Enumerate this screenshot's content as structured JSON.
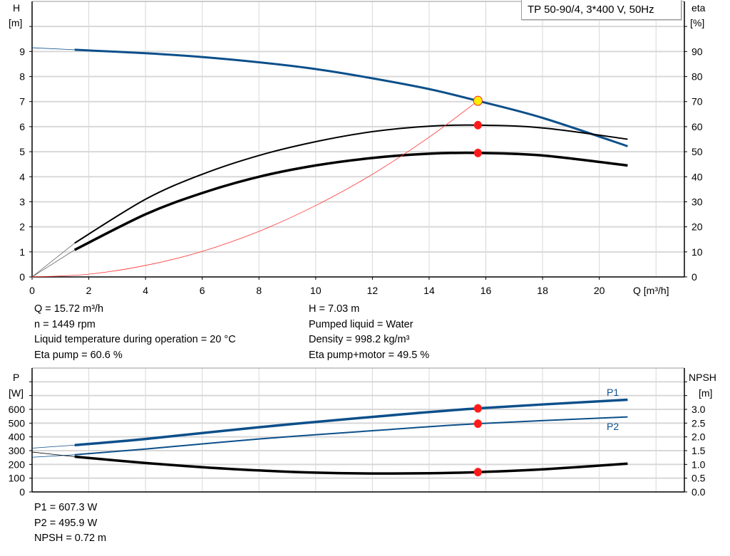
{
  "chart_data": [
    {
      "type": "line",
      "title": "TP 50-90/4, 3*400 V, 50Hz",
      "xlabel": "Q [m³/h]",
      "ylabel_left": [
        "H",
        "[m]"
      ],
      "ylabel_right": [
        "eta",
        "[%]"
      ],
      "xlim": [
        0,
        23
      ],
      "ylim_left": [
        0,
        11
      ],
      "ylim_right": [
        0,
        110
      ],
      "xticks": [
        0,
        2,
        4,
        6,
        8,
        10,
        12,
        14,
        16,
        18,
        20
      ],
      "yticks_left": [
        0,
        1,
        2,
        3,
        4,
        5,
        6,
        7,
        8,
        9
      ],
      "yticks_right": [
        0,
        10,
        20,
        30,
        40,
        50,
        60,
        70,
        80,
        90
      ],
      "grid": true,
      "series": [
        {
          "key": "H",
          "axis": "left",
          "color": "#0b4f8a",
          "x": [
            1.5,
            4,
            6,
            8,
            10,
            12,
            14,
            15.72,
            18,
            21
          ],
          "y": [
            9.07,
            8.93,
            8.78,
            8.57,
            8.3,
            7.93,
            7.5,
            7.03,
            6.35,
            5.22
          ],
          "extension_start": [
            0,
            9.15
          ]
        },
        {
          "key": "eta_pump",
          "axis": "right",
          "color": "#000000",
          "x": [
            1.5,
            4,
            6,
            8,
            10,
            12,
            14,
            15.72,
            18,
            21
          ],
          "y": [
            13.5,
            31,
            41,
            48.5,
            54,
            58,
            60.2,
            60.6,
            59.5,
            55
          ],
          "extension_start": [
            0,
            0
          ]
        },
        {
          "key": "eta_pump_motor",
          "axis": "right",
          "color": "#000000",
          "x": [
            1.5,
            4,
            6,
            8,
            10,
            12,
            14,
            15.72,
            18,
            21
          ],
          "y": [
            10.8,
            25,
            33.5,
            40,
            44.5,
            47.5,
            49.2,
            49.5,
            48.5,
            44.5
          ],
          "extension_start": [
            0,
            0
          ]
        },
        {
          "key": "system_curve",
          "axis": "left",
          "color": "#ff3030",
          "x": [
            0,
            2,
            4,
            6,
            8,
            10,
            12,
            14,
            15.72
          ],
          "y": [
            0,
            0.11,
            0.46,
            1.02,
            1.82,
            2.85,
            4.1,
            5.58,
            7.03
          ]
        }
      ],
      "duty_point": {
        "Q": 15.72,
        "H": 7.03,
        "eta_pump": 60.6,
        "eta_pump_motor": 49.5
      }
    },
    {
      "type": "line",
      "xlim": [
        0,
        23
      ],
      "ylabel_left": [
        "P",
        "[W]"
      ],
      "ylabel_right": [
        "NPSH",
        "[m]"
      ],
      "ylim_left": [
        0,
        900
      ],
      "ylim_right": [
        0,
        4.5
      ],
      "yticks_left": [
        0,
        100,
        200,
        300,
        400,
        500,
        600
      ],
      "yticks_right": [
        "0.0",
        "0.5",
        "1.0",
        "1.5",
        "2.0",
        "2.5",
        "3.0"
      ],
      "grid": true,
      "series": [
        {
          "name": "P1",
          "axis": "left",
          "color": "#0b4f8a",
          "x": [
            1.5,
            4,
            8,
            12,
            15.72,
            21
          ],
          "y": [
            340,
            385,
            470,
            545,
            607.3,
            670
          ],
          "extension_start": [
            0,
            318
          ]
        },
        {
          "name": "P2",
          "axis": "left",
          "color": "#0b4f8a",
          "x": [
            1.5,
            4,
            8,
            12,
            15.72,
            21
          ],
          "y": [
            270,
            312,
            385,
            445,
            495.9,
            545
          ],
          "extension_start": [
            0,
            252
          ]
        },
        {
          "key": "NPSH",
          "axis": "right",
          "color": "#000000",
          "x": [
            1.5,
            4,
            6,
            8,
            10,
            12,
            14,
            15.72,
            18,
            21
          ],
          "y": [
            1.28,
            1.05,
            0.9,
            0.78,
            0.7,
            0.67,
            0.68,
            0.72,
            0.82,
            1.03
          ],
          "extension_start": [
            0,
            1.45
          ]
        }
      ]
    }
  ],
  "info_top": {
    "left": [
      "Q = 15.72 m³/h",
      "n = 1449 rpm",
      "Liquid temperature during operation = 20 °C",
      "Eta pump = 60.6 %"
    ],
    "right": [
      "H = 7.03 m",
      "Pumped liquid = Water",
      "Density = 998.2 kg/m³",
      "Eta pump+motor = 49.5 %"
    ]
  },
  "info_bottom": [
    "P1 = 607.3 W",
    "P2 = 495.9 W",
    "NPSH = 0.72 m"
  ]
}
